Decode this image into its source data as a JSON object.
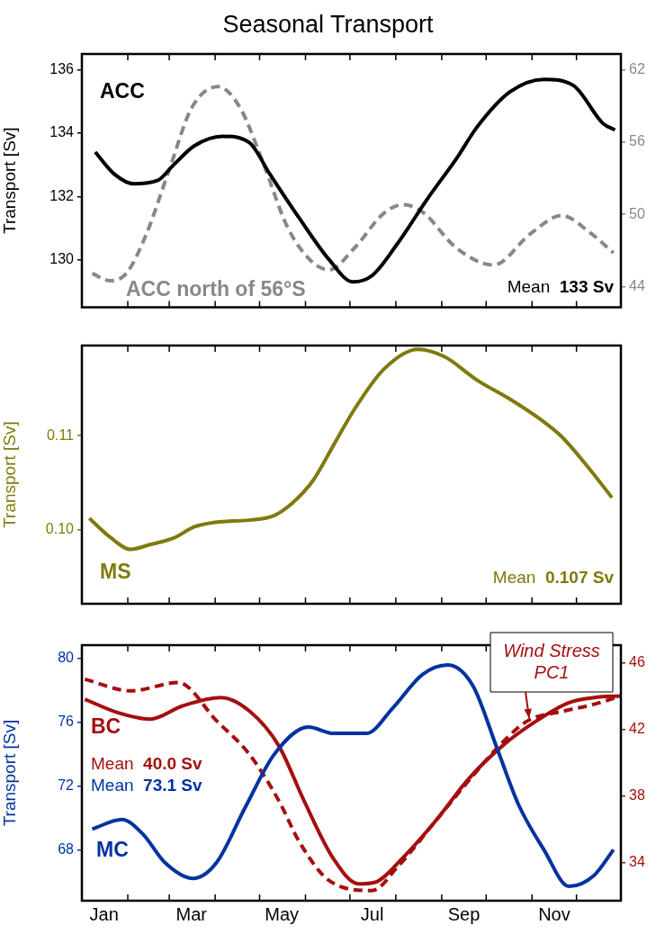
{
  "chart_data": [
    {
      "type": "line",
      "title": "Seasonal Transport",
      "ylabel": "Transport [Sv]",
      "xlim": [
        "--01-01",
        "--12-31"
      ],
      "ylim": [
        128.5,
        136.5
      ],
      "y2lim": [
        42.3,
        63.3
      ],
      "tick_labels": "y",
      "xticks": [
        {
          "value": "--02-01",
          "label": null
        },
        {
          "value": "--03-01",
          "label": null
        },
        {
          "value": "--04-01",
          "label": null
        },
        {
          "value": "--05-01",
          "label": null
        },
        {
          "value": "--06-01",
          "label": null
        },
        {
          "value": "--07-01",
          "label": null
        },
        {
          "value": "--08-01",
          "label": null
        },
        {
          "value": "--09-01",
          "label": null
        },
        {
          "value": "--10-01",
          "label": null
        },
        {
          "value": "--11-01",
          "label": null
        },
        {
          "value": "--12-01",
          "label": null
        }
      ],
      "yticks": [
        130,
        132,
        134,
        136
      ],
      "y2ticks": [
        44,
        50,
        56,
        62
      ],
      "series": [
        {
          "name": "ACC",
          "color": "#000000",
          "x": [
            "--01-10",
            "--01-23",
            "--02-05",
            "--02-21",
            "--03-04",
            "--03-18",
            "--04-06",
            "--04-24",
            "--05-08",
            "--05-28",
            "--06-17",
            "--07-03",
            "--07-16",
            "--08-02",
            "--08-22",
            "--09-11",
            "--09-25",
            "--10-17",
            "--11-09",
            "--11-29",
            "--12-19",
            "--12-27"
          ],
          "values": [
            133.4,
            132.7,
            132.4,
            132.5,
            133.0,
            133.6,
            133.9,
            133.7,
            132.7,
            131.3,
            130.0,
            129.3,
            129.5,
            130.5,
            131.9,
            133.2,
            134.2,
            135.3,
            135.7,
            135.5,
            134.3,
            134.1
          ]
        },
        {
          "name": "ACC north of 56°S",
          "color": "#888888",
          "axis": "y2",
          "line_style": "dashed",
          "x": [
            "--01-08",
            "--01-20",
            "--01-31",
            "--02-13",
            "--03-01",
            "--03-16",
            "--04-03",
            "--04-18",
            "--05-03",
            "--05-20",
            "--06-06",
            "--06-17",
            "--07-04",
            "--07-24",
            "--08-06",
            "--08-19",
            "--09-11",
            "--10-06",
            "--10-31",
            "--11-21",
            "--12-10",
            "--12-26"
          ],
          "values": [
            45.1,
            44.5,
            45.1,
            48.2,
            53.7,
            58.8,
            60.6,
            58.8,
            54.4,
            48.9,
            46.0,
            45.4,
            47.2,
            50.1,
            50.8,
            50.2,
            47.2,
            45.8,
            48.4,
            49.9,
            48.5,
            46.8
          ]
        }
      ],
      "annotations": [
        "Mean 133 Sv"
      ]
    },
    {
      "type": "line",
      "ylabel": "Transport [Sv]",
      "xlim": [
        "--01-01",
        "--12-31"
      ],
      "ylim": [
        0.0921,
        0.1196
      ],
      "tick_labels": "y",
      "xticks": [
        {
          "value": "--02-01",
          "label": null
        },
        {
          "value": "--03-01",
          "label": null
        },
        {
          "value": "--04-01",
          "label": null
        },
        {
          "value": "--05-01",
          "label": null
        },
        {
          "value": "--06-01",
          "label": null
        },
        {
          "value": "--07-01",
          "label": null
        },
        {
          "value": "--08-01",
          "label": null
        },
        {
          "value": "--09-01",
          "label": null
        },
        {
          "value": "--10-01",
          "label": null
        },
        {
          "value": "--11-01",
          "label": null
        },
        {
          "value": "--12-01",
          "label": null
        }
      ],
      "yticks": [
        {
          "value": 0.1,
          "label": "0.10"
        },
        0.11
      ],
      "series": [
        {
          "name": "MS",
          "color": "#7f7a0b",
          "x": [
            "--01-06",
            "--01-20",
            "--02-03",
            "--02-16",
            "--03-04",
            "--03-18",
            "--04-02",
            "--04-24",
            "--05-11",
            "--05-23",
            "--06-06",
            "--06-20",
            "--07-04",
            "--07-24",
            "--08-16",
            "--09-03",
            "--09-25",
            "--10-17",
            "--11-07",
            "--11-21",
            "--12-08",
            "--12-25"
          ],
          "values": [
            0.1012,
            0.0992,
            0.0979,
            0.0984,
            0.0991,
            0.1003,
            0.1008,
            0.101,
            0.1015,
            0.1028,
            0.1052,
            0.109,
            0.1128,
            0.1171,
            0.1192,
            0.1184,
            0.1159,
            0.1139,
            0.1117,
            0.1099,
            0.1068,
            0.1034
          ]
        }
      ],
      "annotations": [
        "Mean 0.107 Sv"
      ]
    },
    {
      "type": "line",
      "ylabel": "Transport [Sv]",
      "xlim": [
        "--01-01",
        "--12-31"
      ],
      "ylim": [
        64.8,
        80.84
      ],
      "y2lim": [
        31.69,
        47.05
      ],
      "xticks": [
        {
          "value": "--01-16",
          "label": "Jan"
        },
        {
          "value": "--02-01",
          "label": null
        },
        {
          "value": "--03-01",
          "label": null
        },
        {
          "value": "--03-16",
          "label": "Mar"
        },
        {
          "value": "--04-01",
          "label": null
        },
        {
          "value": "--05-01",
          "label": null
        },
        {
          "value": "--05-16",
          "label": "May"
        },
        {
          "value": "--06-01",
          "label": null
        },
        {
          "value": "--07-01",
          "label": null
        },
        {
          "value": "--07-16",
          "label": "Jul"
        },
        {
          "value": "--08-01",
          "label": null
        },
        {
          "value": "--09-01",
          "label": null
        },
        {
          "value": "--09-16",
          "label": "Sep"
        },
        {
          "value": "--10-01",
          "label": null
        },
        {
          "value": "--11-01",
          "label": null
        },
        {
          "value": "--11-16",
          "label": "Nov"
        },
        {
          "value": "--12-01",
          "label": null
        }
      ],
      "yticks": [
        68,
        72,
        76,
        80
      ],
      "y2ticks": [
        34,
        38,
        42,
        46
      ],
      "series": [
        {
          "name": "MC",
          "color": "#0033a0",
          "x": [
            "--01-08",
            "--01-28",
            "--02-11",
            "--02-26",
            "--03-17",
            "--04-02",
            "--04-21",
            "--05-11",
            "--06-03",
            "--06-20",
            "--07-12",
            "--07-30",
            "--08-19",
            "--09-05",
            "--09-22",
            "--10-09",
            "--10-23",
            "--11-09",
            "--11-26",
            "--12-13",
            "--12-26"
          ],
          "values": [
            69.3,
            69.9,
            69.0,
            67.2,
            66.2,
            67.2,
            70.6,
            74.0,
            75.7,
            75.3,
            75.3,
            76.9,
            79.0,
            79.6,
            78.3,
            74.2,
            70.8,
            68.0,
            65.7,
            66.4,
            68.0
          ]
        },
        {
          "name": "BC",
          "color": "#a50f0f",
          "axis": "y2",
          "x": [
            "--01-03",
            "--01-25",
            "--02-16",
            "--03-10",
            "--04-05",
            "--04-24",
            "--05-14",
            "--05-31",
            "--06-20",
            "--07-07",
            "--07-18",
            "--08-05",
            "--08-28",
            "--09-19",
            "--10-12",
            "--11-04",
            "--11-26",
            "--12-13",
            "--12-31"
          ],
          "values": [
            43.8,
            43.0,
            42.6,
            43.4,
            43.9,
            43.1,
            41.0,
            37.7,
            34.2,
            32.7,
            32.8,
            34.2,
            36.5,
            39.0,
            41.0,
            42.5,
            43.6,
            43.9,
            44.0
          ]
        },
        {
          "name": "Wind Stress PC1",
          "color": "#a50f0f",
          "axis": "y2",
          "line_style": "dashed",
          "x": [
            "--01-03",
            "--02-03",
            "--03-07",
            "--04-02",
            "--04-24",
            "--05-14",
            "--05-28",
            "--06-17",
            "--07-16",
            "--08-02",
            "--08-28",
            "--09-22",
            "--10-12",
            "--10-29",
            "--11-23",
            "--12-13",
            "--12-31"
          ],
          "values": [
            45.0,
            44.3,
            44.8,
            42.5,
            40.5,
            37.7,
            35.2,
            32.9,
            32.3,
            33.7,
            36.5,
            39.2,
            41.2,
            42.5,
            43.1,
            43.5,
            44.0
          ]
        }
      ],
      "annotations": [
        "Mean 40.0 Sv",
        "Mean 73.1 Sv"
      ]
    }
  ]
}
